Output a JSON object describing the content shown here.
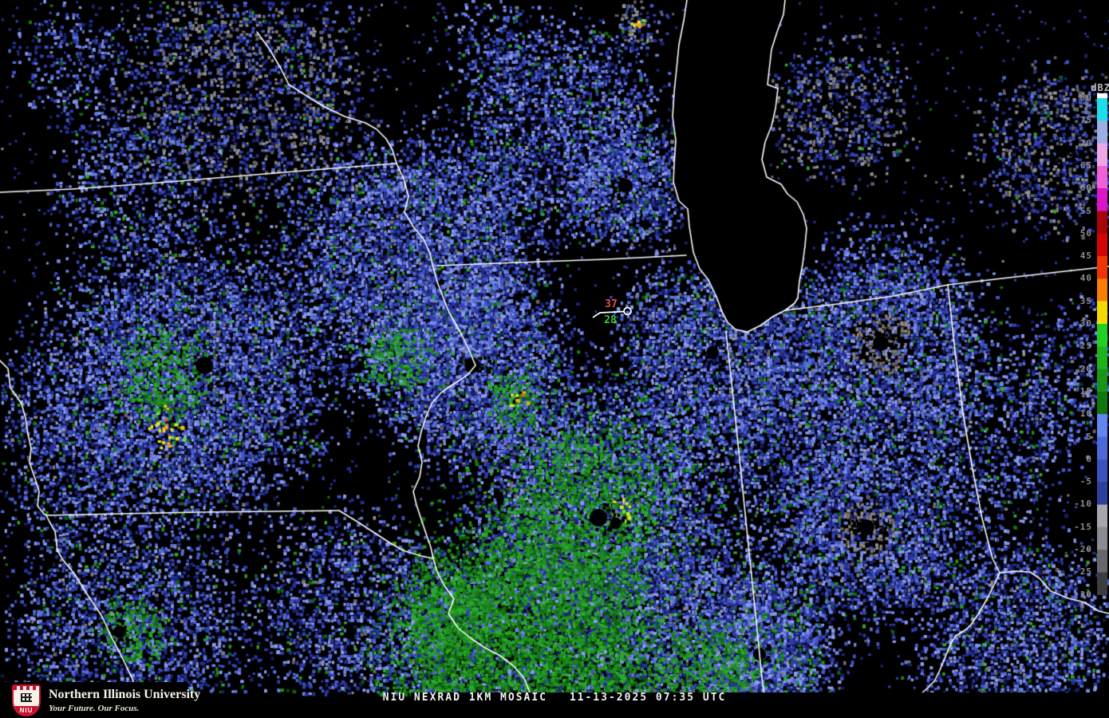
{
  "caption": {
    "product": "NIU NEXRAD 1KM MOSAIC",
    "timestamp": "11-13-2025 07:35 UTC"
  },
  "branding": {
    "institution": "Northern Illinois University",
    "tagline": "Your Future. Our Focus.",
    "shield_text": "NIU",
    "brand_red": "#c8102e"
  },
  "map": {
    "station_plot": {
      "temperature": "37",
      "dewpoint": "28",
      "temperature_color": "#e25050",
      "dewpoint_color": "#3cc83c",
      "symbol_color": "#ffffff"
    }
  },
  "colorbar": {
    "units": "dBZ",
    "tick_labels": [
      "80",
      "75",
      "70",
      "65",
      "60",
      "55",
      "50",
      "45",
      "40",
      "35",
      "30",
      "25",
      "20",
      "15",
      "10",
      "5",
      "0",
      "-5",
      "-10",
      "-15",
      "-20",
      "-25",
      "-30"
    ],
    "tick_max": 80,
    "tick_min": -30,
    "tick_step": 5,
    "segments": [
      {
        "max": "80+",
        "color": "#ffffff"
      },
      {
        "max": 80,
        "color": "#1edce8"
      },
      {
        "max": 75,
        "color": "#9caee4"
      },
      {
        "max": 70,
        "color": "#eda6e6"
      },
      {
        "max": 65,
        "color": "#f160d6"
      },
      {
        "max": 60,
        "color": "#dc14ca"
      },
      {
        "max": 55,
        "color": "#a60505"
      },
      {
        "max": 50,
        "color": "#d40505"
      },
      {
        "max": 45,
        "color": "#ef3505"
      },
      {
        "max": 40,
        "color": "#f67f04"
      },
      {
        "max": 35,
        "color": "#f2d904"
      },
      {
        "max": 30,
        "color": "#22cf22"
      },
      {
        "max": 25,
        "color": "#1db31d"
      },
      {
        "max": 20,
        "color": "#179517"
      },
      {
        "max": 15,
        "color": "#0e770e"
      },
      {
        "max": 10,
        "color": "#6585ee"
      },
      {
        "max": 5,
        "color": "#4c68da"
      },
      {
        "max": 0,
        "color": "#3b51bc"
      },
      {
        "max": -5,
        "color": "#2e3f9e"
      },
      {
        "max": -10,
        "color": "#a6a6ae"
      },
      {
        "max": -15,
        "color": "#8b8b93"
      },
      {
        "max": -20,
        "color": "#67676e"
      },
      {
        "max": -25,
        "color": "#3c3c43"
      }
    ]
  }
}
